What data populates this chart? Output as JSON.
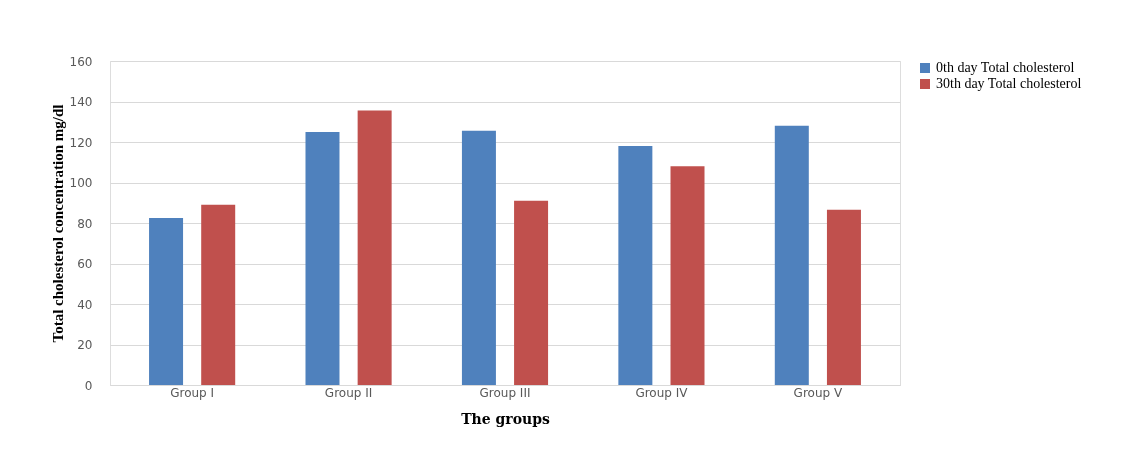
{
  "chart_data": {
    "type": "bar",
    "xlabel": "The groups",
    "ylabel": "Total cholesterol concentration mg/dl",
    "categories": [
      "Group I",
      "Group II",
      "Group III",
      "Group IV",
      "Group V"
    ],
    "series": [
      {
        "name": "0th day Total cholesterol",
        "color": "#4f81bd",
        "values": [
          82.5,
          125,
          125.5,
          118,
          128
        ]
      },
      {
        "name": "30th day Total cholesterol",
        "color": "#c0504d",
        "values": [
          89,
          135.5,
          91,
          108,
          86.5
        ]
      }
    ],
    "ylim": [
      0,
      160
    ],
    "yticks": [
      0,
      20,
      40,
      60,
      80,
      100,
      120,
      140,
      160
    ],
    "grid": "y",
    "legend": "right"
  }
}
